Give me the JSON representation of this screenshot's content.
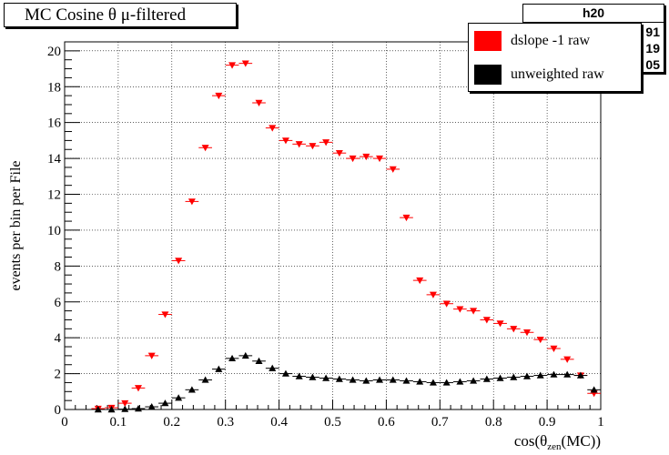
{
  "title": "MC Cosine θ μ-filtered",
  "stats": {
    "name": "h20",
    "values": [
      "91",
      "19",
      "05"
    ]
  },
  "chart_data": {
    "type": "scatter",
    "xlabel": "cos(θzen(MC))",
    "xlabel_main": "cos(θ",
    "xlabel_sub": "zen",
    "xlabel_tail": "(MC))",
    "ylabel": "events per bin per File",
    "xlim": [
      0,
      1
    ],
    "ylim": [
      0,
      20.5
    ],
    "xticks": [
      "0",
      "0.1",
      "0.2",
      "0.3",
      "0.4",
      "0.5",
      "0.6",
      "0.7",
      "0.8",
      "0.9",
      "1"
    ],
    "yticks": [
      "0",
      "2",
      "4",
      "6",
      "8",
      "10",
      "12",
      "14",
      "16",
      "18",
      "20"
    ],
    "grid": true,
    "legend_position": "top-right",
    "series": [
      {
        "name": "dslope -1 raw",
        "color": "#ff0000",
        "marker": "triangle-down",
        "x": [
          0.0625,
          0.0875,
          0.1125,
          0.1375,
          0.1625,
          0.1875,
          0.2125,
          0.2375,
          0.2625,
          0.2875,
          0.3125,
          0.3375,
          0.3625,
          0.3875,
          0.4125,
          0.4375,
          0.4625,
          0.4875,
          0.5125,
          0.5375,
          0.5625,
          0.5875,
          0.6125,
          0.6375,
          0.6625,
          0.6875,
          0.7125,
          0.7375,
          0.7625,
          0.7875,
          0.8125,
          0.8375,
          0.8625,
          0.8875,
          0.9125,
          0.9375,
          0.9625,
          0.9875
        ],
        "y": [
          0.05,
          0.1,
          0.35,
          1.2,
          3.0,
          5.3,
          8.3,
          11.6,
          14.6,
          17.5,
          19.2,
          19.3,
          17.1,
          15.7,
          15.0,
          14.8,
          14.7,
          14.9,
          14.3,
          14.0,
          14.1,
          14.0,
          13.4,
          10.7,
          7.2,
          6.4,
          5.9,
          5.6,
          5.5,
          5.0,
          4.8,
          4.5,
          4.3,
          3.9,
          3.4,
          2.8,
          1.9,
          0.9
        ]
      },
      {
        "name": "unweighted raw",
        "color": "#000000",
        "marker": "triangle-up",
        "x": [
          0.0625,
          0.0875,
          0.1125,
          0.1375,
          0.1625,
          0.1875,
          0.2125,
          0.2375,
          0.2625,
          0.2875,
          0.3125,
          0.3375,
          0.3625,
          0.3875,
          0.4125,
          0.4375,
          0.4625,
          0.4875,
          0.5125,
          0.5375,
          0.5625,
          0.5875,
          0.6125,
          0.6375,
          0.6625,
          0.6875,
          0.7125,
          0.7375,
          0.7625,
          0.7875,
          0.8125,
          0.8375,
          0.8625,
          0.8875,
          0.9125,
          0.9375,
          0.9625,
          0.9875
        ],
        "y": [
          0.0,
          0.0,
          0.02,
          0.05,
          0.15,
          0.35,
          0.65,
          1.1,
          1.65,
          2.25,
          2.85,
          3.0,
          2.7,
          2.3,
          2.0,
          1.85,
          1.8,
          1.75,
          1.7,
          1.65,
          1.6,
          1.65,
          1.65,
          1.6,
          1.55,
          1.5,
          1.5,
          1.55,
          1.6,
          1.7,
          1.75,
          1.8,
          1.85,
          1.9,
          1.95,
          1.95,
          1.9,
          1.1
        ]
      }
    ]
  }
}
